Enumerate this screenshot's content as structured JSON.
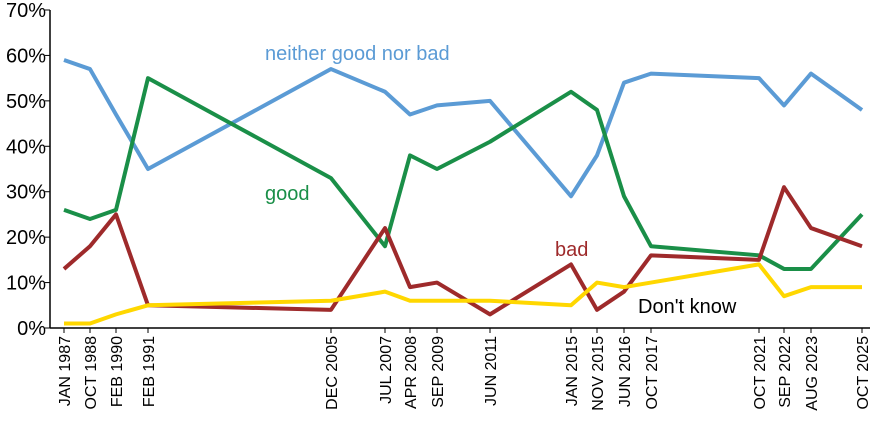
{
  "chart_data": {
    "type": "line",
    "x": [
      "JAN 1987",
      "OCT 1988",
      "FEB 1990",
      "FEB 1991",
      "DEC 2005",
      "JUL 2007",
      "APR 2008",
      "SEP 2009",
      "JUN 2011",
      "JAN 2015",
      "NOV 2015",
      "JUN 2016",
      "OCT 2017",
      "OCT 2021",
      "SEP 2022",
      "AUG 2023",
      "OCT 2025"
    ],
    "series": [
      {
        "name": "neither good nor bad",
        "color": "#5b9bd5",
        "values": [
          59,
          57,
          47,
          35,
          57,
          52,
          47,
          49,
          50,
          29,
          38,
          54,
          56,
          55,
          49,
          56,
          48
        ]
      },
      {
        "name": "good",
        "color": "#1a8f48",
        "values": [
          26,
          24,
          26,
          55,
          33,
          18,
          38,
          35,
          41,
          52,
          48,
          29,
          18,
          16,
          13,
          13,
          25
        ]
      },
      {
        "name": "bad",
        "color": "#9e2a2b",
        "values": [
          13,
          18,
          25,
          5,
          4,
          22,
          9,
          10,
          3,
          14,
          4,
          8,
          16,
          15,
          31,
          22,
          18
        ]
      },
      {
        "name": "Don't know",
        "color": "#ffd700",
        "values": [
          1,
          1,
          3,
          5,
          6,
          8,
          6,
          6,
          6,
          5,
          10,
          9,
          10,
          14,
          7,
          9,
          9
        ]
      }
    ],
    "ylim": [
      0,
      70
    ],
    "yticks": [
      {
        "value": 0,
        "label": "0%"
      },
      {
        "value": 10,
        "label": "10%"
      },
      {
        "value": 20,
        "label": "20%"
      },
      {
        "value": 30,
        "label": "30%"
      },
      {
        "value": 40,
        "label": "40%"
      },
      {
        "value": 50,
        "label": "50%"
      },
      {
        "value": 60,
        "label": "60%"
      },
      {
        "value": 70,
        "label": "70%"
      }
    ]
  }
}
